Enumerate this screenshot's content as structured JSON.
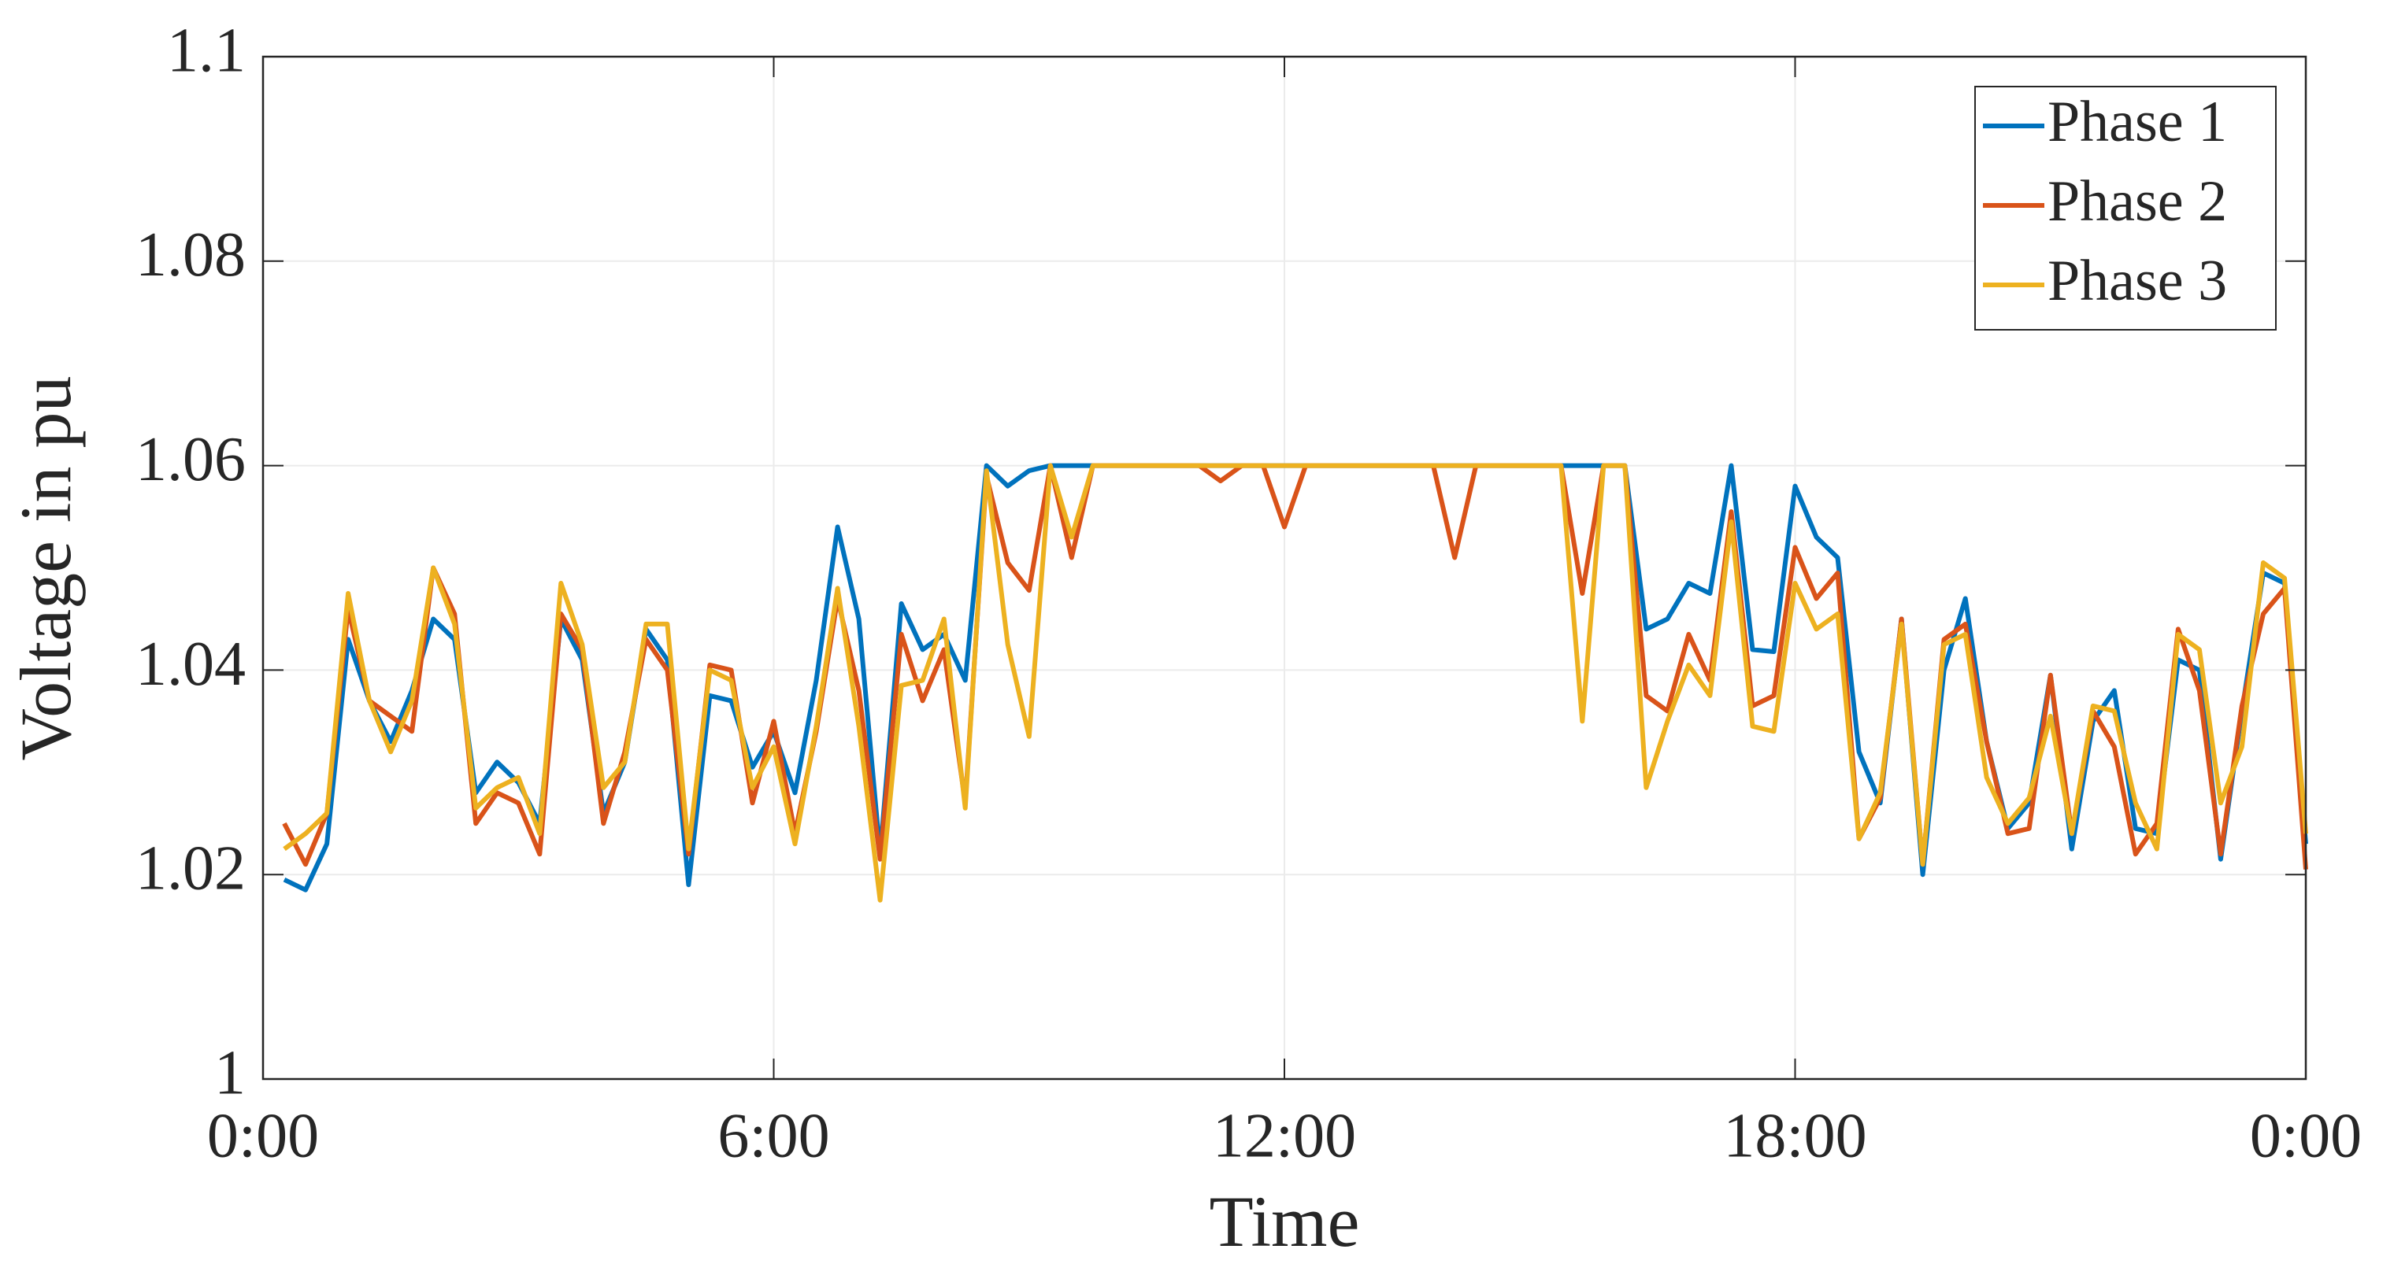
{
  "chart_data": {
    "type": "line",
    "xlabel": "Time",
    "ylabel": "Voltage in pu",
    "xlim": [
      0,
      24
    ],
    "xticks": [
      {
        "value": 0,
        "label": "0:00"
      },
      {
        "value": 6,
        "label": "6:00"
      },
      {
        "value": 12,
        "label": "12:00"
      },
      {
        "value": 18,
        "label": "18:00"
      },
      {
        "value": 24,
        "label": "0:00"
      }
    ],
    "ylim": [
      1,
      1.1
    ],
    "yticks": [
      1,
      1.02,
      1.04,
      1.06,
      1.08,
      1.1
    ],
    "grid": true,
    "legend": "northeast",
    "x": [
      0.25,
      0.5,
      0.75,
      1,
      1.25,
      1.5,
      1.75,
      2,
      2.25,
      2.5,
      2.75,
      3,
      3.25,
      3.5,
      3.75,
      4,
      4.25,
      4.5,
      4.75,
      5,
      5.25,
      5.5,
      5.75,
      6,
      6.25,
      6.5,
      6.75,
      7,
      7.25,
      7.5,
      7.75,
      8,
      8.25,
      8.5,
      8.75,
      9,
      9.25,
      9.5,
      9.75,
      10,
      10.25,
      10.5,
      10.75,
      11,
      11.25,
      11.5,
      11.75,
      12,
      12.25,
      12.5,
      12.75,
      13,
      13.25,
      13.5,
      13.75,
      14,
      14.25,
      14.5,
      14.75,
      15,
      15.25,
      15.5,
      15.75,
      16,
      16.25,
      16.5,
      16.75,
      17,
      17.25,
      17.5,
      17.75,
      18,
      18.25,
      18.5,
      18.75,
      19,
      19.25,
      19.5,
      19.75,
      20,
      20.25,
      20.5,
      20.75,
      21,
      21.25,
      21.5,
      21.75,
      22,
      22.25,
      22.5,
      22.75,
      23,
      23.25,
      23.5,
      23.75,
      24
    ],
    "series": [
      {
        "name": "Phase 1",
        "color": "#0072bd",
        "values": [
          1.0195,
          1.0185,
          1.023,
          1.043,
          1.037,
          1.033,
          1.038,
          1.045,
          1.043,
          1.028,
          1.031,
          1.029,
          1.025,
          1.045,
          1.041,
          1.026,
          1.031,
          1.044,
          1.041,
          1.019,
          1.0375,
          1.037,
          1.0305,
          1.034,
          1.028,
          1.039,
          1.054,
          1.045,
          1.022,
          1.0465,
          1.042,
          1.0435,
          1.039,
          1.06,
          1.058,
          1.0595,
          1.06,
          1.06,
          1.06,
          1.06,
          1.06,
          1.06,
          1.06,
          1.06,
          1.06,
          1.06,
          1.06,
          1.06,
          1.06,
          1.06,
          1.06,
          1.06,
          1.06,
          1.06,
          1.06,
          1.06,
          1.06,
          1.06,
          1.06,
          1.06,
          1.06,
          1.06,
          1.06,
          1.06,
          1.044,
          1.045,
          1.0485,
          1.0475,
          1.06,
          1.042,
          1.0418,
          1.058,
          1.053,
          1.051,
          1.032,
          1.027,
          1.045,
          1.02,
          1.04,
          1.047,
          1.033,
          1.0245,
          1.027,
          1.0395,
          1.0225,
          1.035,
          1.038,
          1.0245,
          1.024,
          1.041,
          1.04,
          1.0215,
          1.036,
          1.0495,
          1.0485,
          1.023
        ]
      },
      {
        "name": "Phase 2",
        "color": "#d95319",
        "values": [
          1.025,
          1.021,
          1.026,
          1.046,
          1.037,
          1.0355,
          1.034,
          1.05,
          1.0455,
          1.025,
          1.028,
          1.027,
          1.022,
          1.0455,
          1.042,
          1.025,
          1.032,
          1.043,
          1.04,
          1.022,
          1.0405,
          1.04,
          1.027,
          1.035,
          1.024,
          1.034,
          1.047,
          1.038,
          1.0215,
          1.0435,
          1.037,
          1.042,
          1.027,
          1.059,
          1.0505,
          1.0478,
          1.06,
          1.051,
          1.06,
          1.06,
          1.06,
          1.06,
          1.06,
          1.06,
          1.0585,
          1.06,
          1.06,
          1.054,
          1.06,
          1.06,
          1.06,
          1.06,
          1.06,
          1.06,
          1.06,
          1.051,
          1.06,
          1.06,
          1.06,
          1.06,
          1.06,
          1.0475,
          1.06,
          1.06,
          1.0375,
          1.036,
          1.0435,
          1.039,
          1.0555,
          1.0365,
          1.0375,
          1.052,
          1.047,
          1.0495,
          1.0235,
          1.0275,
          1.045,
          1.021,
          1.043,
          1.0445,
          1.033,
          1.024,
          1.0245,
          1.0395,
          1.024,
          1.036,
          1.0325,
          1.022,
          1.025,
          1.044,
          1.038,
          1.022,
          1.0365,
          1.0455,
          1.048,
          1.0205
        ]
      },
      {
        "name": "Phase 3",
        "color": "#edb120",
        "values": [
          1.0225,
          1.024,
          1.026,
          1.0475,
          1.037,
          1.032,
          1.037,
          1.05,
          1.0445,
          1.0265,
          1.0285,
          1.0295,
          1.024,
          1.0485,
          1.0425,
          1.0285,
          1.031,
          1.0445,
          1.0445,
          1.0225,
          1.04,
          1.039,
          1.0285,
          1.0325,
          1.023,
          1.0345,
          1.048,
          1.0345,
          1.0175,
          1.0385,
          1.039,
          1.045,
          1.0265,
          1.0595,
          1.0425,
          1.0335,
          1.06,
          1.053,
          1.06,
          1.06,
          1.06,
          1.06,
          1.06,
          1.06,
          1.06,
          1.06,
          1.06,
          1.06,
          1.06,
          1.06,
          1.06,
          1.06,
          1.06,
          1.06,
          1.06,
          1.06,
          1.06,
          1.06,
          1.06,
          1.06,
          1.06,
          1.035,
          1.06,
          1.06,
          1.0285,
          1.035,
          1.0405,
          1.0375,
          1.0545,
          1.0345,
          1.034,
          1.0485,
          1.044,
          1.0455,
          1.0235,
          1.028,
          1.0445,
          1.021,
          1.0425,
          1.0435,
          1.0295,
          1.025,
          1.0275,
          1.0355,
          1.024,
          1.0365,
          1.036,
          1.027,
          1.0225,
          1.0435,
          1.042,
          1.027,
          1.0325,
          1.0505,
          1.049,
          1.024
        ]
      }
    ]
  }
}
